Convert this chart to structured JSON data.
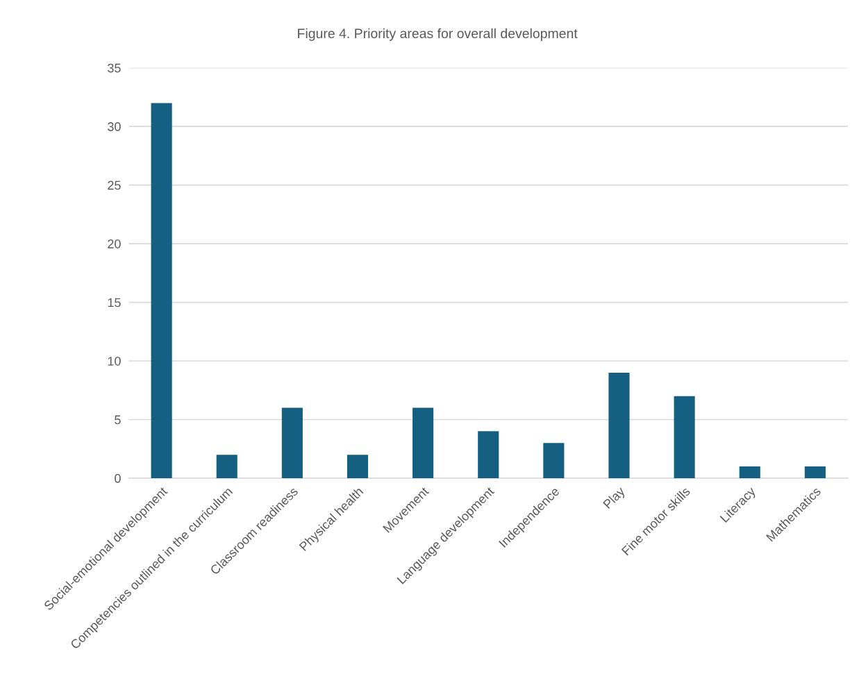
{
  "chart_data": {
    "type": "bar",
    "title": "Figure 4. Priority areas for overall development",
    "categories": [
      "Social-emotional development",
      "Competencies outlined in the curriculum",
      "Classroom readiness",
      "Physical health",
      "Movement",
      "Language development",
      "Independence",
      "Play",
      "Fine motor skills",
      "Literacy",
      "Mathematics"
    ],
    "values": [
      32,
      2,
      6,
      2,
      6,
      4,
      3,
      9,
      7,
      1,
      1
    ],
    "color": "#156082",
    "ylim": [
      0,
      35
    ],
    "yticks": [
      0,
      5,
      10,
      15,
      20,
      25,
      30,
      35
    ],
    "grid": "y"
  }
}
